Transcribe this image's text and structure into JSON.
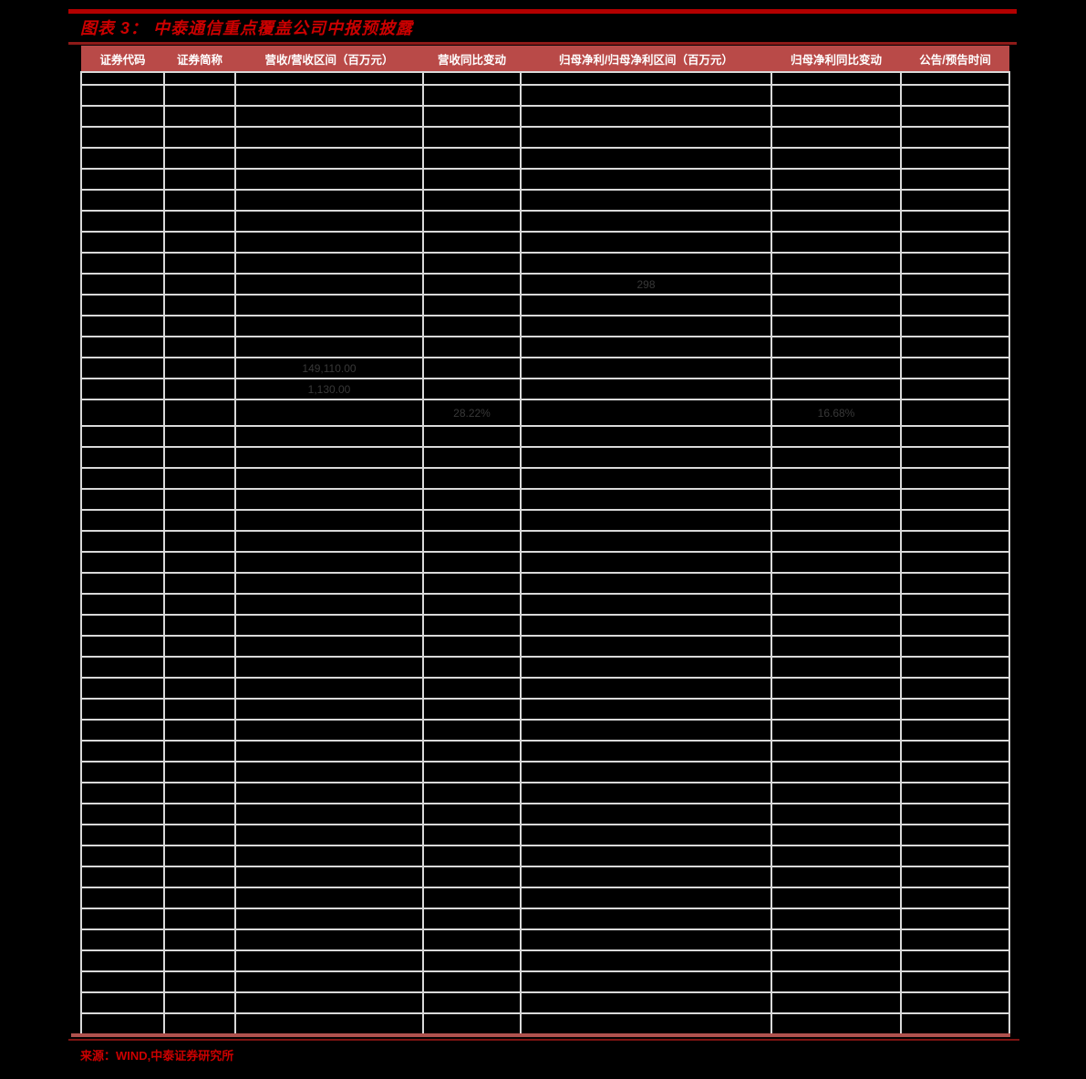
{
  "title": {
    "label": "图表 3： 中泰通信重点覆盖公司中报预披露",
    "color": "#cc0000"
  },
  "table": {
    "headers": [
      "证券代码",
      "证券简称",
      "营收/营收区间（百万元）",
      "营收同比变动",
      "归母净利/归母净利区间（百万元）",
      "归母净利同比变动",
      "公告/预告时间"
    ],
    "header_bg": "#b94a48",
    "header_fg": "#ffffff",
    "grid_color": "#d9d9d9",
    "cell_fg": "#383838",
    "num_rows": 46,
    "special_rows": {
      "short": [
        1
      ],
      "tall": [
        17
      ]
    },
    "cells": [
      {
        "row": 11,
        "col": 5,
        "value": "298"
      },
      {
        "row": 15,
        "col": 3,
        "value": "149,110.00"
      },
      {
        "row": 16,
        "col": 3,
        "value": "1,130.00"
      },
      {
        "row": 17,
        "col": 4,
        "value": "28.22%"
      },
      {
        "row": 17,
        "col": 6,
        "value": "16.68%"
      }
    ]
  },
  "source": {
    "label": "来源：WIND,中泰证券研究所",
    "color": "#cc0000"
  },
  "accents": {
    "top_bar": "#b30000",
    "title_underline": "#8e1a18",
    "bottom_bar": "#b0524e",
    "bottom_line": "#7c1412",
    "page_bg": "#000000"
  }
}
